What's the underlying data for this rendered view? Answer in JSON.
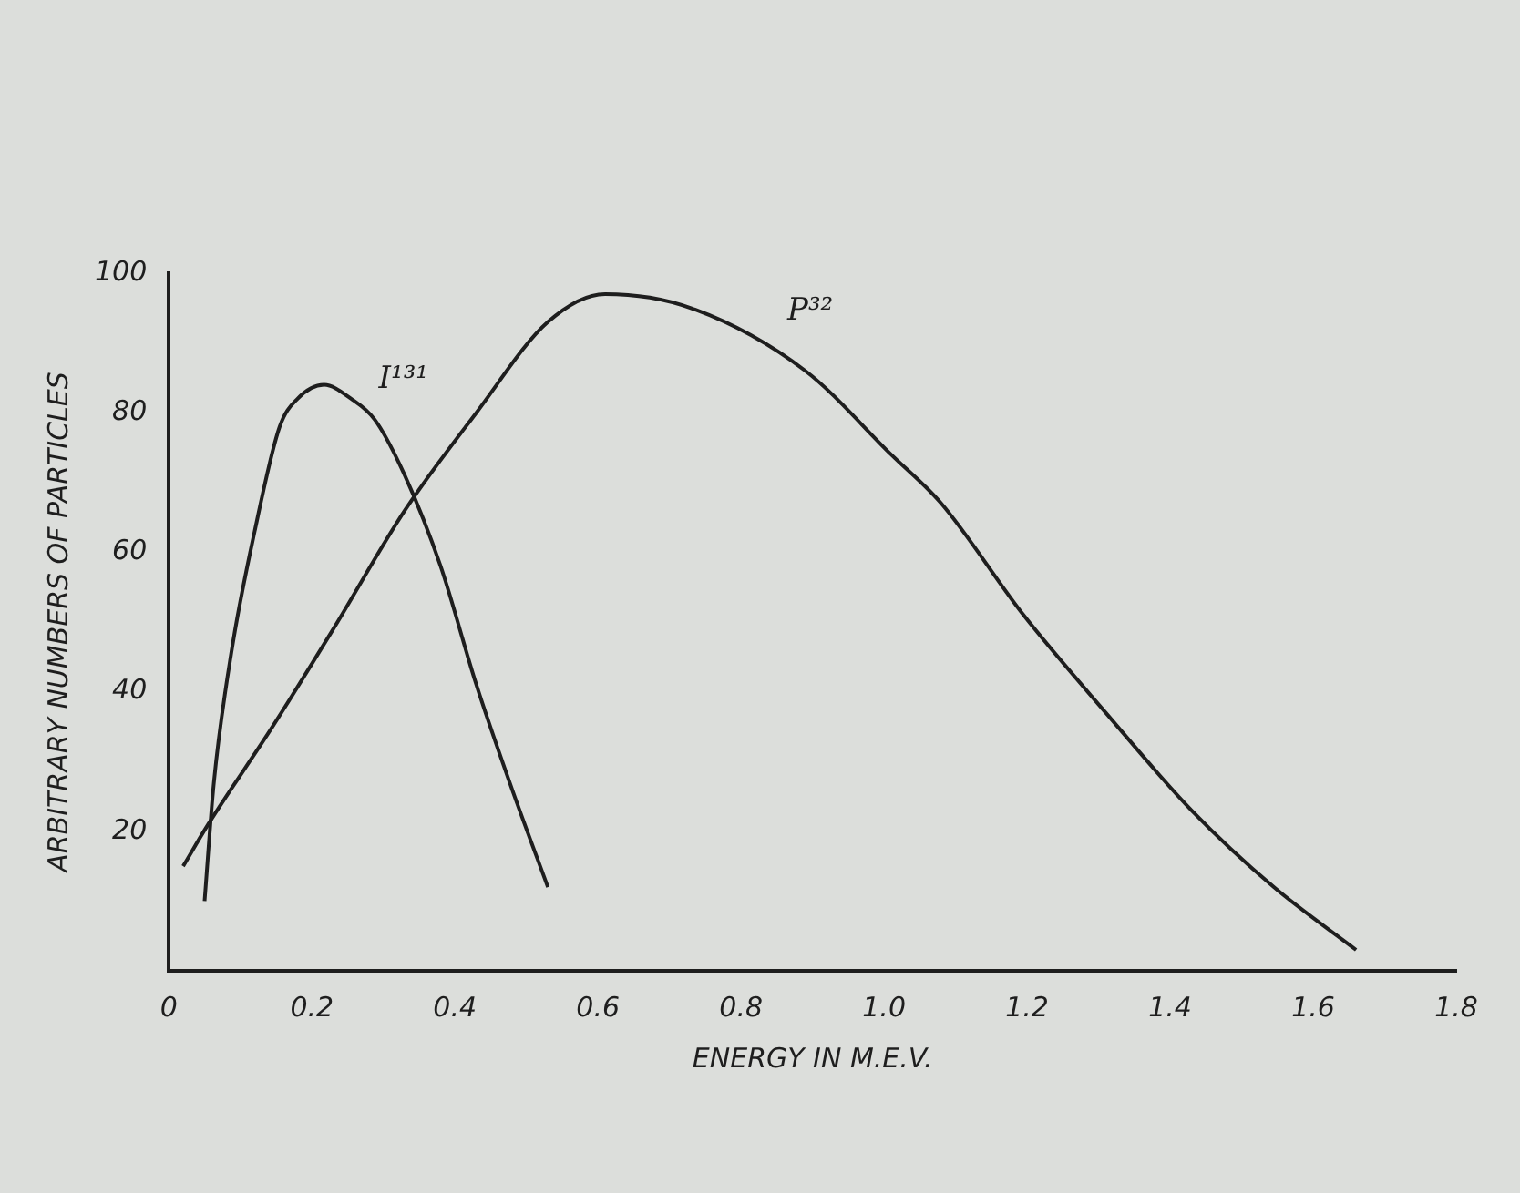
{
  "chart_data": {
    "type": "line",
    "xlabel": "ENERGY IN M.E.V.",
    "ylabel": "ARBITRARY NUMBERS OF PARTICLES",
    "xlim": [
      0,
      1.8
    ],
    "xticks": [
      0,
      0.2,
      0.4,
      0.6,
      0.8,
      {
        "value": 1,
        "label": "1.0"
      },
      1.2,
      1.4,
      1.6,
      1.8
    ],
    "ylim": [
      0,
      100
    ],
    "yticks": [
      20,
      40,
      60,
      80,
      100
    ],
    "grid": false,
    "legend": false,
    "marker": "none",
    "line_style": "solid",
    "series": [
      {
        "name": "I¹³¹",
        "color": "#1e1e1e",
        "x": [
          0.05,
          0.063,
          0.088,
          0.12,
          0.155,
          0.18,
          0.217,
          0.255,
          0.288,
          0.33,
          0.38,
          0.43,
          0.48,
          0.53
        ],
        "values": [
          10,
          27,
          46,
          63,
          78,
          82,
          84,
          82,
          79,
          71,
          58,
          41,
          26,
          12
        ]
      },
      {
        "name": "P³²",
        "color": "#1e1e1e",
        "x": [
          0.02,
          0.055,
          0.145,
          0.23,
          0.33,
          0.43,
          0.53,
          0.61,
          0.73,
          0.89,
          1.01,
          1.08,
          1.195,
          1.31,
          1.43,
          1.545,
          1.66
        ],
        "values": [
          15,
          21,
          35,
          49,
          66,
          80,
          93,
          97,
          95,
          86,
          74,
          67,
          51,
          37,
          23,
          12,
          3
        ]
      }
    ]
  }
}
